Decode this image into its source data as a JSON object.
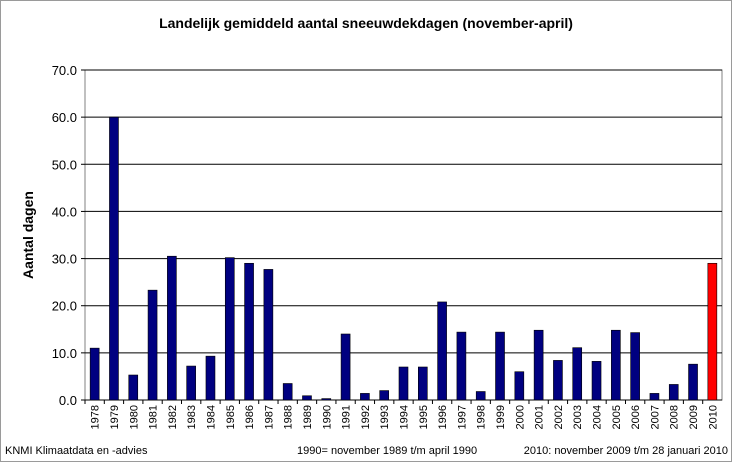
{
  "chart_data": {
    "type": "bar",
    "title": "Landelijk gemiddeld aantal sneeuwdekdagen (november-april)",
    "ylabel": "Aantal dagen",
    "xlabel": "",
    "ylim": [
      0,
      70
    ],
    "yticks": [
      "0.0",
      "10.0",
      "20.0",
      "30.0",
      "40.0",
      "50.0",
      "60.0",
      "70.0"
    ],
    "grid": true,
    "categories": [
      "1978",
      "1979",
      "1980",
      "1981",
      "1982",
      "1983",
      "1984",
      "1985",
      "1986",
      "1987",
      "1988",
      "1989",
      "1990",
      "1991",
      "1992",
      "1993",
      "1994",
      "1995",
      "1996",
      "1997",
      "1998",
      "1999",
      "2000",
      "2001",
      "2002",
      "2003",
      "2004",
      "2005",
      "2006",
      "2007",
      "2008",
      "2009",
      "2010"
    ],
    "values": [
      11.0,
      60.0,
      5.3,
      23.3,
      30.5,
      7.2,
      9.3,
      30.2,
      29.0,
      27.7,
      3.5,
      0.9,
      0.3,
      14.0,
      1.4,
      2.0,
      7.0,
      7.0,
      20.8,
      14.4,
      1.8,
      14.4,
      6.0,
      14.8,
      8.4,
      11.1,
      8.2,
      14.8,
      14.3,
      1.4,
      3.3,
      7.6,
      29.0
    ],
    "highlight_index": 32,
    "bar_color": "#000080",
    "highlight_color": "#ff0000"
  },
  "footer": {
    "source": "KNMI Klimaatdata en -advies",
    "note_1990": "1990= november 1989 t/m april 1990",
    "note_2010": "2010: november 2009 t/m 28 januari 2010"
  }
}
